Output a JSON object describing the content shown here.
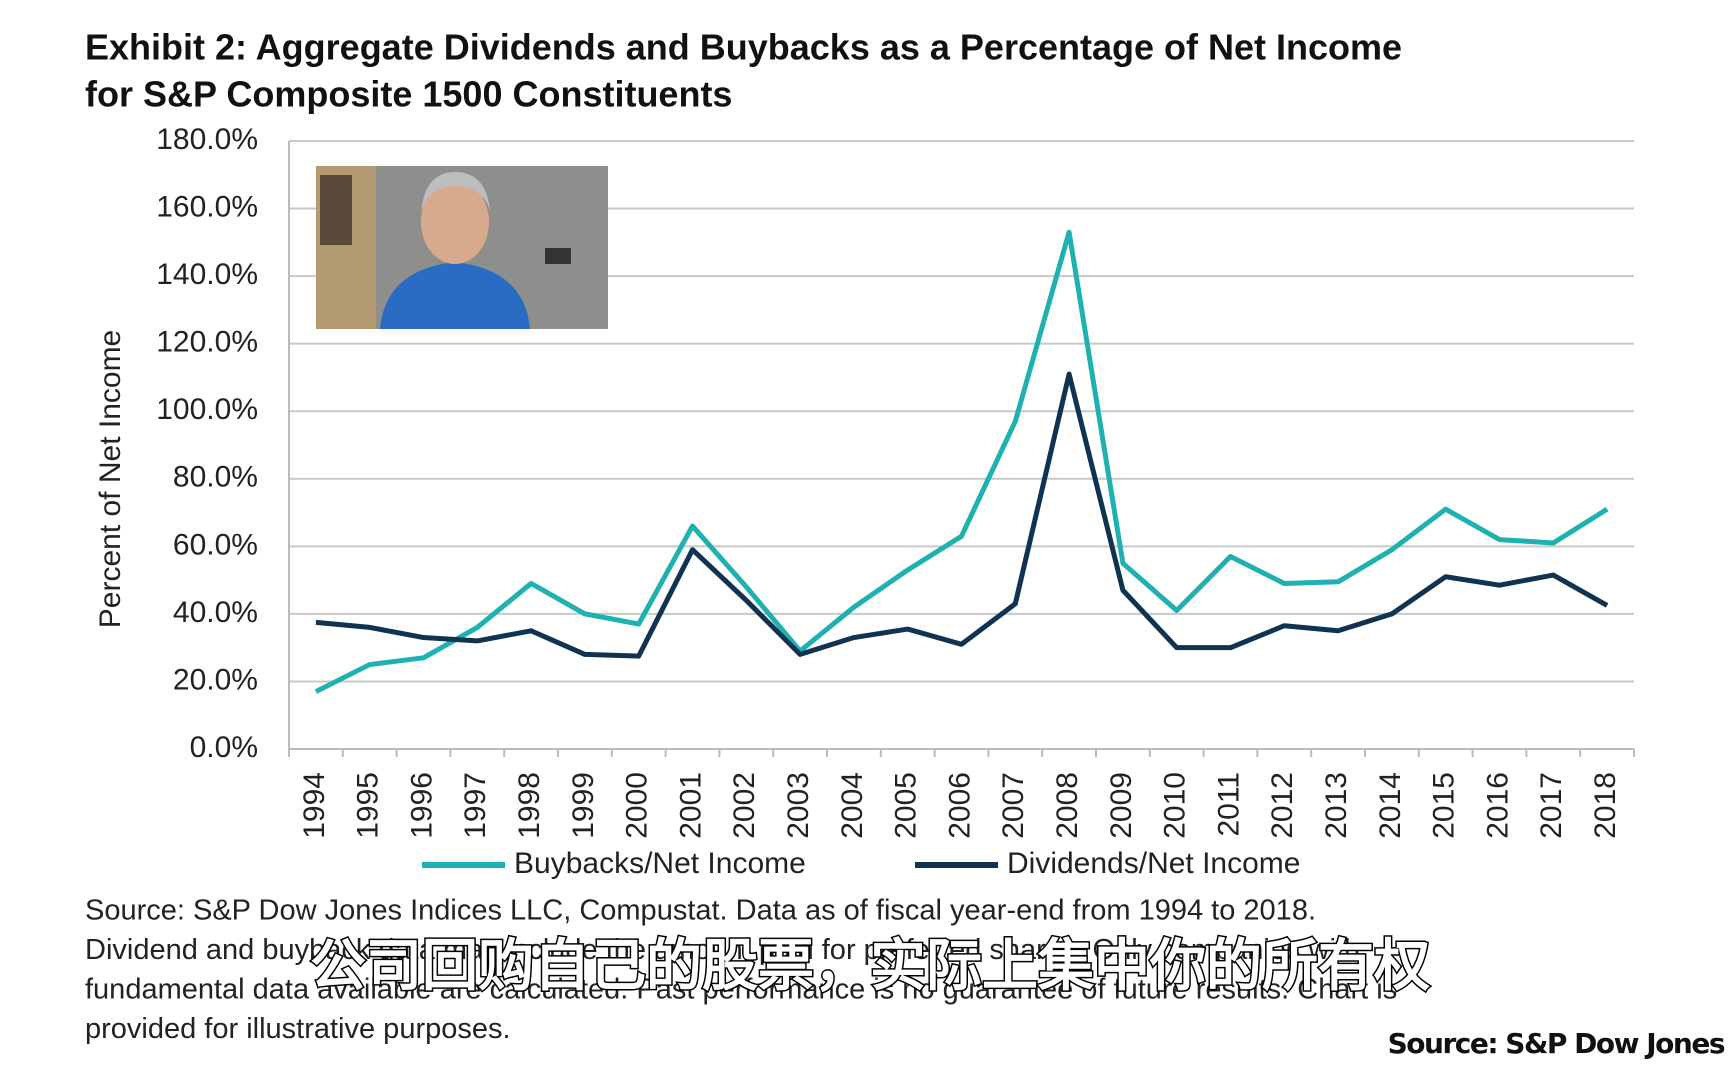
{
  "chart_data": {
    "type": "line",
    "title": [
      "Exhibit 2: Aggregate Dividends and Buybacks as a Percentage of Net Income",
      "for S&P Composite 1500 Constituents"
    ],
    "y_label": "Percent of Net Income",
    "categories": [
      "1994",
      "1995",
      "1996",
      "1997",
      "1998",
      "1999",
      "2000",
      "2001",
      "2002",
      "2003",
      "2004",
      "2005",
      "2006",
      "2007",
      "2008",
      "2009",
      "2010",
      "2011",
      "2012",
      "2013",
      "2014",
      "2015",
      "2016",
      "2017",
      "2018"
    ],
    "series": [
      {
        "name": "Buybacks/Net Income",
        "color": "#1fb1b1",
        "values": [
          17,
          25,
          27,
          36,
          49,
          40,
          37,
          66,
          48,
          29,
          42,
          53,
          63,
          97,
          153,
          55,
          41,
          57,
          49,
          49.5,
          59,
          71,
          62,
          61,
          71
        ]
      },
      {
        "name": "Dividends/Net Income",
        "color": "#0f3350",
        "values": [
          37.5,
          36,
          33,
          32,
          35,
          28,
          27.5,
          59,
          44,
          28,
          33,
          35.5,
          31,
          43,
          111,
          47,
          30,
          30,
          36.5,
          35,
          40,
          51,
          48.5,
          51.5,
          42.5
        ]
      }
    ],
    "ylim": [
      0,
      180
    ],
    "yticks": [
      {
        "value": 0,
        "label": "0.0%"
      },
      {
        "value": 20,
        "label": "20.0%"
      },
      {
        "value": 40,
        "label": "40.0%"
      },
      {
        "value": 60,
        "label": "60.0%"
      },
      {
        "value": 80,
        "label": "80.0%"
      },
      {
        "value": 100,
        "label": "100.0%"
      },
      {
        "value": 120,
        "label": "120.0%"
      },
      {
        "value": 140,
        "label": "140.0%"
      },
      {
        "value": 160,
        "label": "160.0%"
      },
      {
        "value": 180,
        "label": "180.0%"
      }
    ],
    "grid": true,
    "note": [
      "Source: S&P Dow Jones Indices LLC, Compustat.  Data as of fiscal year-end from 1994 to 2018.",
      "Dividend and buyback data may include the amount paid for preferred shares. Only companies with",
      "fundamental data available are calculated.  Past performance is no guarantee of future results.  Chart is",
      "provided for illustrative purposes."
    ]
  },
  "subtitle_overlay": "公司回购自己的股票，实际上集中你的所有权",
  "watermark": "Source: S&P Dow Jones"
}
